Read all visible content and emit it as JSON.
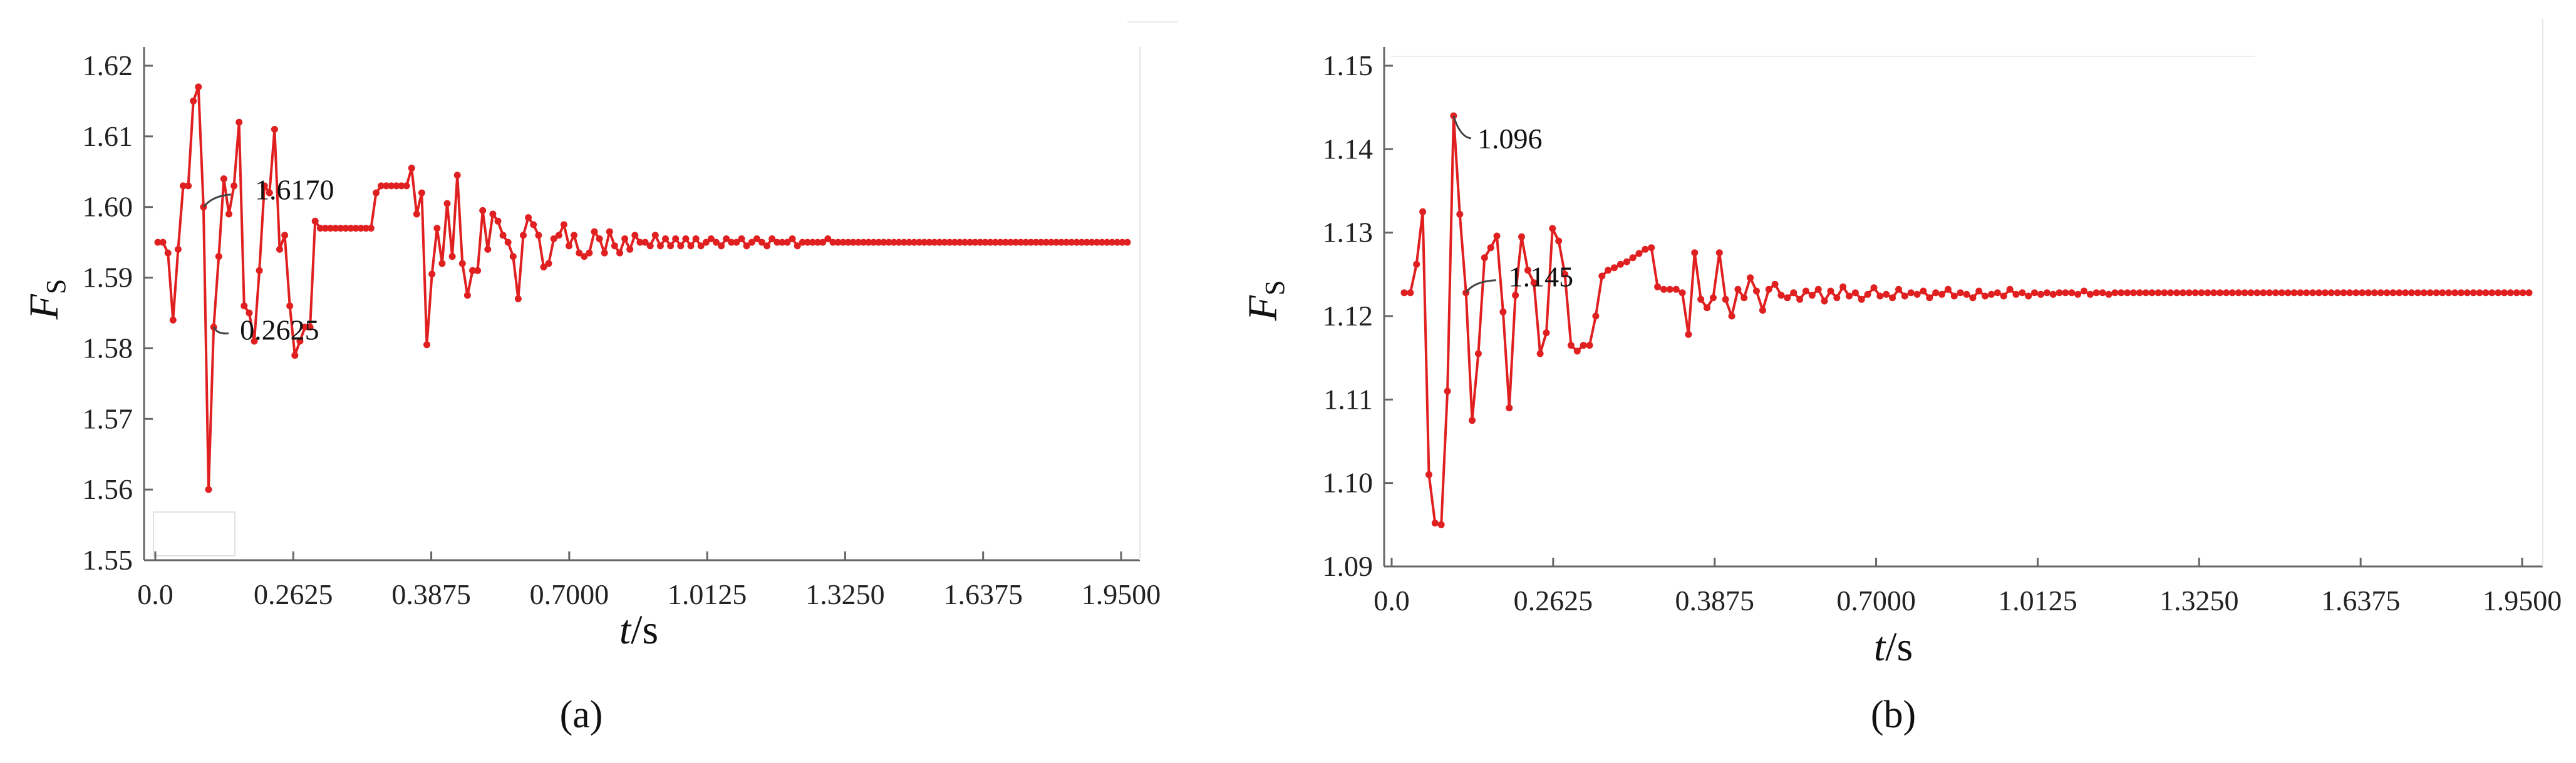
{
  "captions": [
    "(a)",
    "(b)"
  ],
  "chart_data": [
    {
      "type": "line",
      "panel_label": "a",
      "xlabel": "t/s",
      "ylabel": "FS",
      "x_tick_labels": [
        "0.0",
        "0.2625",
        "0.3875",
        "0.7000",
        "1.0125",
        "1.3250",
        "1.6375",
        "1.9500"
      ],
      "y_tick_labels": [
        "1.55",
        "1.56",
        "1.57",
        "1.58",
        "1.59",
        "1.60",
        "1.61",
        "1.62"
      ],
      "ylim": [
        1.55,
        1.62
      ],
      "line_color": "#e02020",
      "grid": false,
      "annotations": [
        {
          "text": "1.6170",
          "index": 9
        },
        {
          "text": "0.2625",
          "index": 11
        }
      ],
      "series": [
        {
          "y": [
            1.595,
            1.595,
            1.5935,
            1.584,
            1.594,
            1.603,
            1.603,
            1.615,
            1.617,
            1.6,
            1.56,
            1.583,
            1.593,
            1.604,
            1.599,
            1.603,
            1.612,
            1.586,
            1.585,
            1.581,
            1.591,
            1.603,
            1.602,
            1.611,
            1.594,
            1.596,
            1.586,
            1.579,
            1.581,
            1.583,
            1.583,
            1.598,
            1.597,
            1.597,
            1.597,
            1.597,
            1.597,
            1.597,
            1.597,
            1.597,
            1.597,
            1.597,
            1.597,
            1.602,
            1.603,
            1.603,
            1.603,
            1.603,
            1.603,
            1.603,
            1.6055,
            1.599,
            1.602,
            1.5805,
            1.5905,
            1.597,
            1.592,
            1.6005,
            1.593,
            1.6045,
            1.592,
            1.5875,
            1.591,
            1.591,
            1.5995,
            1.594,
            1.599,
            1.598,
            1.596,
            1.595,
            1.593,
            1.587,
            1.596,
            1.5985,
            1.5975,
            1.596,
            1.5915,
            1.592,
            1.5955,
            1.596,
            1.5975,
            1.5945,
            1.596,
            1.5935,
            1.593,
            1.5935,
            1.5965,
            1.5955,
            1.5935,
            1.5965,
            1.5945,
            1.5935,
            1.5955,
            1.594,
            1.596,
            1.595,
            1.595,
            1.5945,
            1.596,
            1.5945,
            1.5955,
            1.5945,
            1.5955,
            1.5945,
            1.5955,
            1.5945,
            1.5955,
            1.5945,
            1.595,
            1.5955,
            1.595,
            1.5945,
            1.5955,
            1.595,
            1.595,
            1.5955,
            1.5945,
            1.595,
            1.5955,
            1.595,
            1.5945,
            1.5955,
            1.595,
            1.595,
            1.595,
            1.5955,
            1.5945,
            1.595,
            1.595,
            1.595,
            1.595,
            1.595,
            1.5955,
            1.595,
            1.595,
            1.595,
            1.595,
            1.595,
            1.595,
            1.595,
            1.595,
            1.595,
            1.595,
            1.595,
            1.595,
            1.595,
            1.595,
            1.595,
            1.595,
            1.595,
            1.595,
            1.595,
            1.595,
            1.595,
            1.595,
            1.595,
            1.595,
            1.595,
            1.595,
            1.595,
            1.595,
            1.595,
            1.595,
            1.595,
            1.595,
            1.595,
            1.595,
            1.595,
            1.595,
            1.595,
            1.595,
            1.595,
            1.595,
            1.595,
            1.595,
            1.595,
            1.595,
            1.595,
            1.595,
            1.595,
            1.595,
            1.595,
            1.595,
            1.595,
            1.595,
            1.595,
            1.595,
            1.595,
            1.595,
            1.595,
            1.595,
            1.595
          ]
        }
      ]
    },
    {
      "type": "line",
      "panel_label": "b",
      "xlabel": "t/s",
      "ylabel": "FS",
      "x_tick_labels": [
        "0.0",
        "0.2625",
        "0.3875",
        "0.7000",
        "1.0125",
        "1.3250",
        "1.6375",
        "1.9500"
      ],
      "y_tick_labels": [
        "1.09",
        "1.10",
        "1.11",
        "1.12",
        "1.13",
        "1.14",
        "1.15"
      ],
      "ylim": [
        1.09,
        1.15
      ],
      "line_color": "#e02020",
      "grid": false,
      "annotations": [
        {
          "text": "1.145",
          "index": 10
        },
        {
          "text": "1.096",
          "index": 8
        }
      ],
      "series": [
        {
          "y": [
            1.1228,
            1.1228,
            1.1262,
            1.1325,
            1.101,
            1.0952,
            1.095,
            1.111,
            1.144,
            1.1322,
            1.1228,
            1.1075,
            1.1155,
            1.127,
            1.1282,
            1.1296,
            1.1205,
            1.109,
            1.1225,
            1.1295,
            1.1255,
            1.124,
            1.1155,
            1.118,
            1.1305,
            1.129,
            1.125,
            1.1165,
            1.1158,
            1.1165,
            1.1165,
            1.12,
            1.1248,
            1.1255,
            1.1258,
            1.1262,
            1.1265,
            1.127,
            1.1275,
            1.128,
            1.1282,
            1.1235,
            1.1232,
            1.1232,
            1.1232,
            1.1228,
            1.1178,
            1.1276,
            1.122,
            1.121,
            1.1222,
            1.1276,
            1.122,
            1.12,
            1.1232,
            1.1222,
            1.1246,
            1.123,
            1.1207,
            1.1232,
            1.1238,
            1.1225,
            1.1222,
            1.1228,
            1.122,
            1.123,
            1.1225,
            1.1232,
            1.1218,
            1.123,
            1.1222,
            1.1235,
            1.1224,
            1.1228,
            1.122,
            1.1226,
            1.1234,
            1.1224,
            1.1226,
            1.1222,
            1.1232,
            1.1224,
            1.1228,
            1.1226,
            1.123,
            1.1222,
            1.1228,
            1.1226,
            1.1232,
            1.1224,
            1.1228,
            1.1226,
            1.1222,
            1.123,
            1.1224,
            1.1226,
            1.1228,
            1.1224,
            1.1232,
            1.1226,
            1.1228,
            1.1224,
            1.1228,
            1.1226,
            1.1228,
            1.1226,
            1.1228,
            1.1228,
            1.1228,
            1.1226,
            1.123,
            1.1226,
            1.1228,
            1.1228,
            1.1226,
            1.1228,
            1.1228,
            1.1228,
            1.1228,
            1.1228,
            1.1228,
            1.1228,
            1.1228,
            1.1228,
            1.1228,
            1.1228,
            1.1228,
            1.1228,
            1.1228,
            1.1228,
            1.1228,
            1.1228,
            1.1228,
            1.1228,
            1.1228,
            1.1228,
            1.1228,
            1.1228,
            1.1228,
            1.1228,
            1.1228,
            1.1228,
            1.1228,
            1.1228,
            1.1228,
            1.1228,
            1.1228,
            1.1228,
            1.1228,
            1.1228,
            1.1228,
            1.1228,
            1.1228,
            1.1228,
            1.1228,
            1.1228,
            1.1228,
            1.1228,
            1.1228,
            1.1228,
            1.1228,
            1.1228,
            1.1228,
            1.1228,
            1.1228,
            1.1228,
            1.1228,
            1.1228,
            1.1228,
            1.1228,
            1.1228,
            1.1228,
            1.1228,
            1.1228,
            1.1228,
            1.1228,
            1.1228,
            1.1228,
            1.1228,
            1.1228,
            1.1228,
            1.1228,
            1.1228
          ]
        }
      ]
    }
  ]
}
